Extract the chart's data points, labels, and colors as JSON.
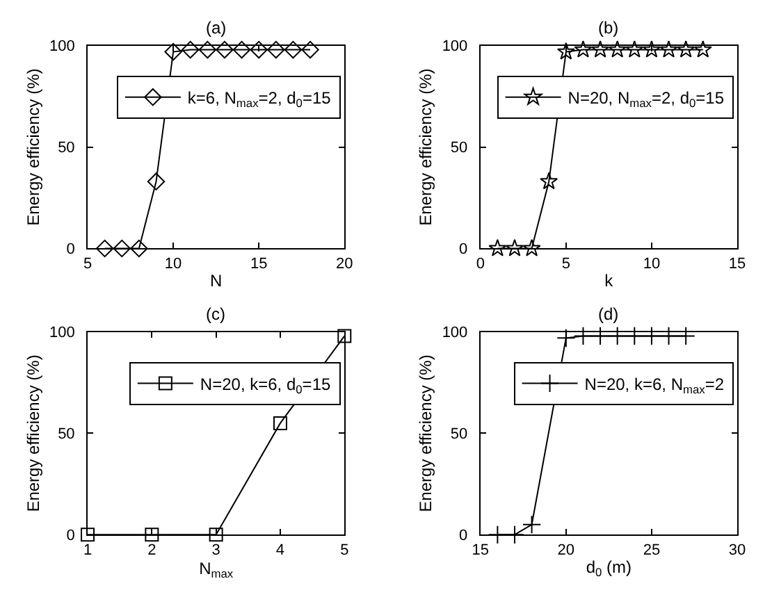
{
  "chart_data": [
    {
      "type": "line",
      "title": "(a)",
      "xlabel": "N",
      "ylabel": "Energy efficiency (%)",
      "x": [
        6,
        7,
        8,
        9,
        10,
        11,
        12,
        13,
        14,
        15,
        16,
        17,
        18
      ],
      "series": [
        {
          "name": "k=6, N$_{max}$=2, d$_{0}$=15",
          "color": "#000000",
          "values": [
            0,
            0,
            0,
            33,
            97,
            98,
            98,
            98,
            98,
            98,
            98,
            98,
            98
          ]
        }
      ],
      "xlim": [
        5,
        20
      ],
      "xticks": [
        5,
        10,
        15,
        20
      ],
      "ylim": [
        0,
        100
      ],
      "yticks": [
        0,
        50,
        100
      ],
      "marker": "diamond",
      "legend": "top right"
    },
    {
      "type": "line",
      "title": "(b)",
      "xlabel": "k",
      "ylabel": "Energy efficiency (%)",
      "x": [
        1,
        2,
        3,
        4,
        5,
        6,
        7,
        8,
        9,
        10,
        11,
        12,
        13
      ],
      "series": [
        {
          "name": "N=20, N$_{max}$=2, d$_{0}$=15",
          "color": "#000000",
          "values": [
            0,
            0,
            0,
            33,
            97,
            98,
            98,
            98,
            98,
            98,
            98,
            98,
            98
          ]
        }
      ],
      "xlim": [
        0,
        15
      ],
      "xticks": [
        0,
        5,
        10,
        15
      ],
      "ylim": [
        0,
        100
      ],
      "yticks": [
        0,
        50,
        100
      ],
      "marker": "star",
      "legend": "top right"
    },
    {
      "type": "line",
      "title": "(c)",
      "xlabel": "N$_{max}$",
      "ylabel": "Energy efficiency (%)",
      "x": [
        1,
        2,
        3,
        4,
        5
      ],
      "series": [
        {
          "name": "N=20, k=6, d$_{0}$=15",
          "color": "#000000",
          "values": [
            0,
            0,
            0,
            55,
            98
          ]
        }
      ],
      "xlim": [
        1,
        5
      ],
      "xticks": [
        1,
        2,
        3,
        4,
        5
      ],
      "ylim": [
        0,
        100
      ],
      "yticks": [
        0,
        50,
        100
      ],
      "marker": "square",
      "legend": "top right"
    },
    {
      "type": "line",
      "title": "(d)",
      "xlabel": "d$_{0}$ (m)",
      "ylabel": "Energy efficiency (%)",
      "x": [
        16,
        17,
        18,
        20,
        21,
        22,
        23,
        24,
        25,
        26,
        27
      ],
      "series": [
        {
          "name": "N=20, k=6, N$_{max}$=2",
          "color": "#000000",
          "values": [
            0,
            0,
            5,
            97,
            98,
            98,
            98,
            98,
            98,
            98,
            98
          ]
        }
      ],
      "xlim": [
        15,
        30
      ],
      "xticks": [
        15,
        20,
        25,
        30
      ],
      "ylim": [
        0,
        100
      ],
      "yticks": [
        0,
        50,
        100
      ],
      "marker": "cross",
      "legend": "top right"
    }
  ]
}
